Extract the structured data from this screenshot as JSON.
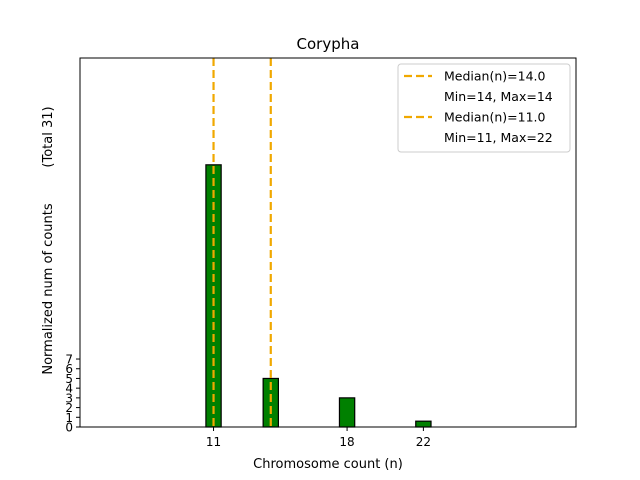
{
  "chart_data": {
    "type": "bar",
    "title": "Corypha",
    "xlabel": "Chromosome count (n)",
    "ylabel": "Normalized num of counts",
    "ylabel_note": "(Total 31)",
    "xlim": [
      4,
      30
    ],
    "ylim": [
      0,
      38
    ],
    "x_ticks": [
      11,
      18,
      22
    ],
    "y_ticks": [
      0,
      1,
      2,
      3,
      4,
      5,
      6,
      7
    ],
    "bar_width": 0.8,
    "bars": [
      {
        "x": 11,
        "value": 27
      },
      {
        "x": 14,
        "value": 5
      },
      {
        "x": 18,
        "value": 3
      },
      {
        "x": 22,
        "value": 0.6
      }
    ],
    "medians": [
      {
        "x": 14,
        "color": "#f0a800"
      },
      {
        "x": 11,
        "color": "#f0a800"
      }
    ],
    "legend": {
      "position": "top-right",
      "entries": [
        {
          "label": "Median(n)=14.0",
          "marker": "dashed-line",
          "color": "#f0a800"
        },
        {
          "label": "Min=14, Max=14",
          "marker": "none"
        },
        {
          "label": "Median(n)=11.0",
          "marker": "dashed-line",
          "color": "#f0a800"
        },
        {
          "label": "Min=11, Max=22",
          "marker": "none"
        }
      ]
    },
    "colors": {
      "bar": "#008000",
      "bar_edge": "#000000",
      "median": "#f0a800"
    }
  }
}
